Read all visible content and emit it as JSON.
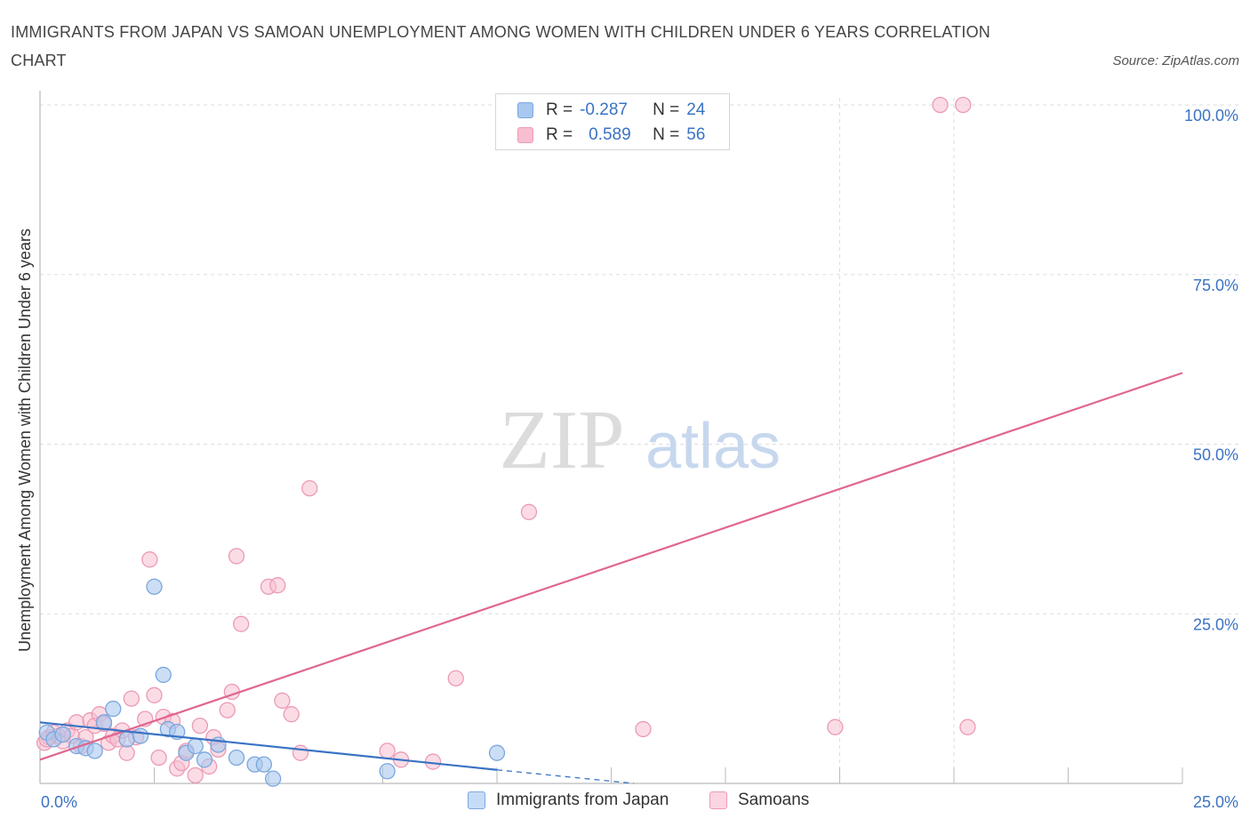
{
  "title": "IMMIGRANTS FROM JAPAN VS SAMOAN UNEMPLOYMENT AMONG WOMEN WITH CHILDREN UNDER 6 YEARS CORRELATION CHART",
  "source": "Source: ZipAtlas.com",
  "watermark": {
    "zip": "ZIP",
    "atlas": "atlas"
  },
  "legend": {
    "japan": {
      "r_label": "R =",
      "r_value": "-0.287",
      "n_label": "N =",
      "n_value": "24"
    },
    "samoa": {
      "r_label": "R =",
      "r_value": "0.589",
      "n_label": "N =",
      "n_value": "56"
    }
  },
  "colors": {
    "japan_fill": "#a9c8ef",
    "japan_stroke": "#7ba7de",
    "japan_line": "#3a73c4",
    "samoa_fill": "#f7bfd0",
    "samoa_stroke": "#ec9ab5",
    "samoa_line": "#e0668f",
    "axis_text": "#3a73c4",
    "grid": "#dddddd"
  },
  "chart_data": {
    "type": "scatter",
    "title": "IMMIGRANTS FROM JAPAN VS SAMOAN UNEMPLOYMENT AMONG WOMEN WITH CHILDREN UNDER 6 YEARS CORRELATION CHART",
    "xlabel": "",
    "ylabel": "Unemployment Among Women with Children Under 6 years",
    "xlim": [
      0,
      25
    ],
    "ylim": [
      0,
      100
    ],
    "x_tick_labels": [
      "0.0%",
      "25.0%"
    ],
    "y_tick_labels": [
      "25.0%",
      "50.0%",
      "75.0%",
      "100.0%"
    ],
    "y_ticks": [
      25,
      50,
      75,
      100
    ],
    "grid": true,
    "series": [
      {
        "name": "Immigrants from Japan",
        "points": [
          [
            0.15,
            7.5
          ],
          [
            0.3,
            6.5
          ],
          [
            0.5,
            7.2
          ],
          [
            0.8,
            5.5
          ],
          [
            1.0,
            5.2
          ],
          [
            1.2,
            4.8
          ],
          [
            1.4,
            9.0
          ],
          [
            1.6,
            11.0
          ],
          [
            1.9,
            6.5
          ],
          [
            2.2,
            7.0
          ],
          [
            2.5,
            29.0
          ],
          [
            2.7,
            16.0
          ],
          [
            2.8,
            8.0
          ],
          [
            3.0,
            7.6
          ],
          [
            3.2,
            4.5
          ],
          [
            3.4,
            5.5
          ],
          [
            3.6,
            3.5
          ],
          [
            3.9,
            5.7
          ],
          [
            4.3,
            3.8
          ],
          [
            4.7,
            2.8
          ],
          [
            4.9,
            2.8
          ],
          [
            5.1,
            0.7
          ],
          [
            7.6,
            1.8
          ],
          [
            10.0,
            4.5
          ]
        ],
        "trend": {
          "x": [
            0,
            10.0
          ],
          "y": [
            9.0,
            2.0
          ]
        },
        "trend_extension": {
          "x": [
            10.0,
            13.0
          ],
          "y": [
            2.0,
            0.0
          ]
        }
      },
      {
        "name": "Samoans",
        "points": [
          [
            0.1,
            6.0
          ],
          [
            0.2,
            6.8
          ],
          [
            0.3,
            7.5
          ],
          [
            0.4,
            7.0
          ],
          [
            0.5,
            6.2
          ],
          [
            0.6,
            7.8
          ],
          [
            0.7,
            7.0
          ],
          [
            0.8,
            9.0
          ],
          [
            0.9,
            5.5
          ],
          [
            1.0,
            6.8
          ],
          [
            1.1,
            9.3
          ],
          [
            1.2,
            8.5
          ],
          [
            1.3,
            10.2
          ],
          [
            1.4,
            8.8
          ],
          [
            1.5,
            6.0
          ],
          [
            1.6,
            7.0
          ],
          [
            1.7,
            6.5
          ],
          [
            1.8,
            7.8
          ],
          [
            1.9,
            4.5
          ],
          [
            2.0,
            12.5
          ],
          [
            2.1,
            6.8
          ],
          [
            2.3,
            9.5
          ],
          [
            2.4,
            33.0
          ],
          [
            2.5,
            13.0
          ],
          [
            2.6,
            3.8
          ],
          [
            2.7,
            9.8
          ],
          [
            2.9,
            9.2
          ],
          [
            3.0,
            2.2
          ],
          [
            3.1,
            3.0
          ],
          [
            3.2,
            4.8
          ],
          [
            3.4,
            1.2
          ],
          [
            3.5,
            8.5
          ],
          [
            3.7,
            2.5
          ],
          [
            3.8,
            6.8
          ],
          [
            3.9,
            5.0
          ],
          [
            4.1,
            10.8
          ],
          [
            4.2,
            13.5
          ],
          [
            4.3,
            33.5
          ],
          [
            4.4,
            23.5
          ],
          [
            5.0,
            29.0
          ],
          [
            5.2,
            29.2
          ],
          [
            5.3,
            12.2
          ],
          [
            5.5,
            10.2
          ],
          [
            5.7,
            4.5
          ],
          [
            5.9,
            43.5
          ],
          [
            7.6,
            4.8
          ],
          [
            7.9,
            3.5
          ],
          [
            8.6,
            3.2
          ],
          [
            9.1,
            15.5
          ],
          [
            10.7,
            40.0
          ],
          [
            13.2,
            8.0
          ],
          [
            17.4,
            8.3
          ],
          [
            19.7,
            100.0
          ],
          [
            20.2,
            100.0
          ],
          [
            20.3,
            8.3
          ],
          [
            0.15,
            6.5
          ]
        ],
        "trend": {
          "x": [
            0,
            25.0
          ],
          "y": [
            3.5,
            60.5
          ]
        }
      }
    ]
  },
  "bottom_legend": {
    "japan": "Immigrants from Japan",
    "samoa": "Samoans"
  }
}
